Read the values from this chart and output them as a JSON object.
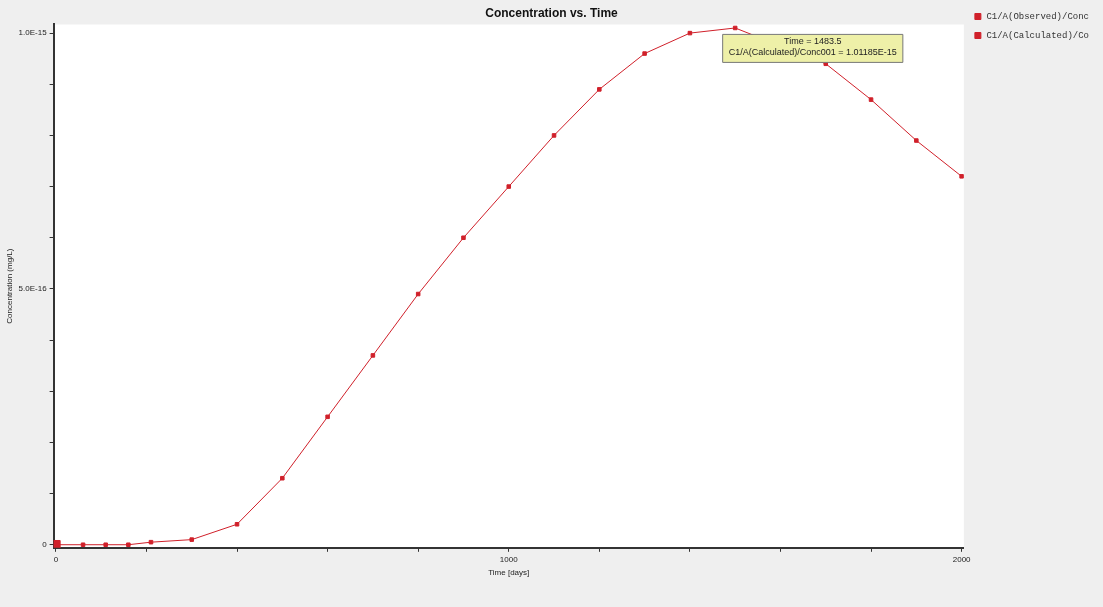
{
  "chart_data": {
    "type": "line",
    "title": "Concentration vs. Time",
    "xlabel": "Time [days]",
    "ylabel": "Concentration (mg/L)",
    "xlim": [
      -5,
      2005
    ],
    "ylim": [
      -6e-18,
      1.017e-15
    ],
    "xticks": [
      0,
      {
        "value": 200,
        "label": null
      },
      {
        "value": 400,
        "label": null
      },
      {
        "value": 600,
        "label": null
      },
      {
        "value": 800,
        "label": null
      },
      1000,
      {
        "value": 1200,
        "label": null
      },
      {
        "value": 1400,
        "label": null
      },
      {
        "value": 1600,
        "label": null
      },
      {
        "value": 1800,
        "label": null
      },
      2000
    ],
    "yticks": [
      0,
      {
        "value": 1e-16,
        "label": null
      },
      {
        "value": 2e-16,
        "label": null
      },
      {
        "value": 3e-16,
        "label": null
      },
      {
        "value": 4e-16,
        "label": null
      },
      {
        "value": 5e-16,
        "label": "5.0E-16"
      },
      {
        "value": 6e-16,
        "label": null
      },
      {
        "value": 7e-16,
        "label": null
      },
      {
        "value": 8e-16,
        "label": null
      },
      {
        "value": 9e-16,
        "label": null
      },
      {
        "value": 1e-15,
        "label": "1.0E-15"
      }
    ],
    "grid": false,
    "legend": "right",
    "marker": "square",
    "line_style": "solid",
    "series": [
      {
        "name": "C1/A(Observed)/Conc",
        "type": "scatter",
        "color": "#d0202a",
        "x": [
          0
        ],
        "values": [
          0
        ]
      },
      {
        "name": "C1/A(Calculated)/Co",
        "color": "#d0202a",
        "x": [
          0,
          60,
          110,
          160,
          210,
          300,
          400,
          500,
          600,
          700,
          800,
          900,
          1000,
          1100,
          1200,
          1300,
          1400,
          1500,
          1700,
          1800,
          1900,
          2000
        ],
        "values": [
          0,
          0,
          0,
          0,
          5e-18,
          1e-17,
          4e-17,
          1.3e-16,
          2.5e-16,
          3.7e-16,
          4.9e-16,
          6e-16,
          7e-16,
          8e-16,
          8.9e-16,
          9.6e-16,
          1e-15,
          1.01e-15,
          9.4e-16,
          8.7e-16,
          7.9e-16,
          7.2e-16
        ]
      }
    ],
    "annotations": [
      "Time = 1483.5\nC1/A(Calculated)/Conc001 = 1.01185E-15"
    ]
  }
}
